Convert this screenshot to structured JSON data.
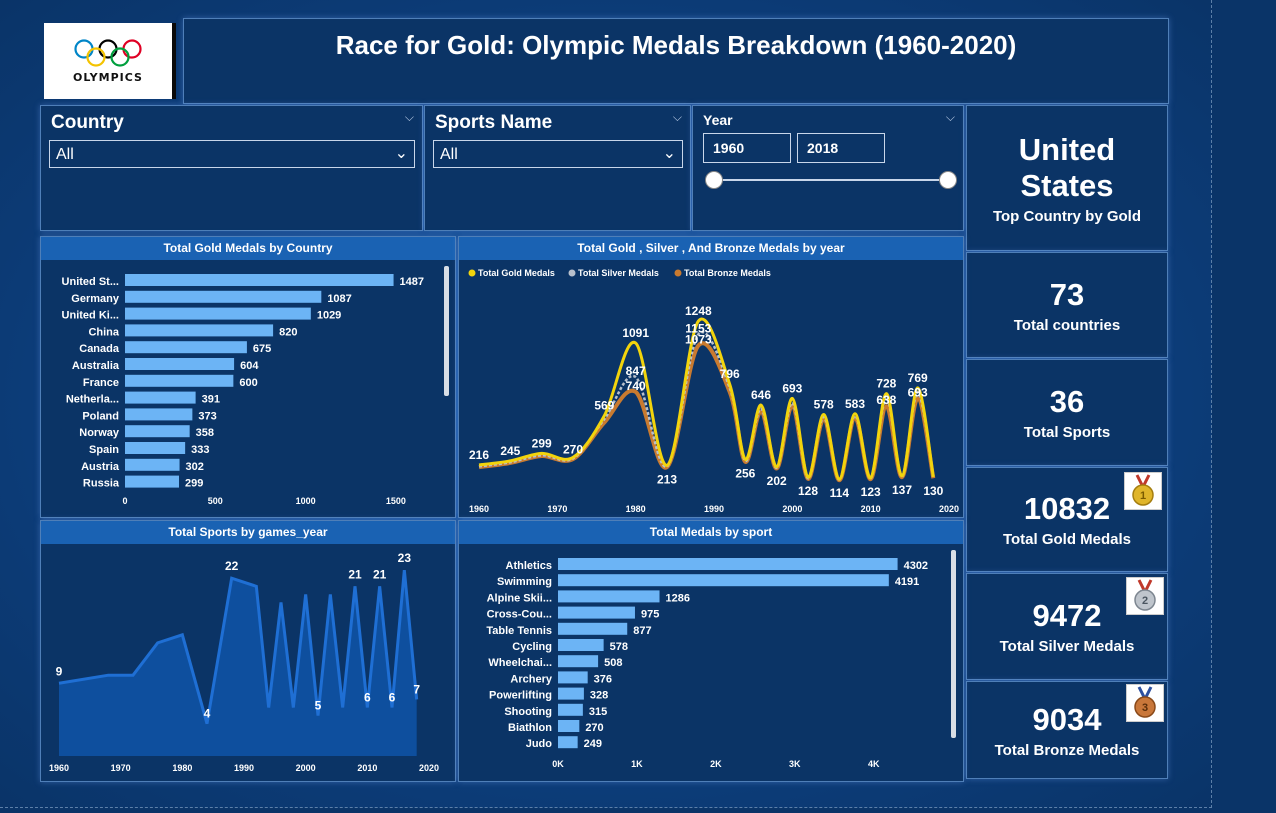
{
  "header": {
    "title": "Race for Gold: Olympic Medals Breakdown (1960-2020)",
    "logo_text": "OLYMPICS"
  },
  "filters": {
    "country": {
      "label": "Country",
      "value": "All"
    },
    "sports": {
      "label": "Sports Name",
      "value": "All"
    },
    "year": {
      "label": "Year",
      "start": "1960",
      "end": "2018"
    }
  },
  "kpis": {
    "top_country": {
      "value": "United States",
      "line1": "United",
      "line2": "States",
      "label": "Top Country by Gold"
    },
    "countries": {
      "value": "73",
      "label": "Total countries"
    },
    "sports": {
      "value": "36",
      "label": "Total Sports"
    },
    "gold": {
      "value": "10832",
      "label": "Total Gold Medals",
      "icon": "gold-medal-icon"
    },
    "silver": {
      "value": "9472",
      "label": "Total Silver Medals",
      "icon": "silver-medal-icon"
    },
    "bronze": {
      "value": "9034",
      "label": "Total Bronze Medals",
      "icon": "bronze-medal-icon"
    }
  },
  "colors": {
    "bar": "#6cb4f5",
    "gold": "#f2d40c",
    "silver": "#b8c0cc",
    "bronze": "#c97a2f",
    "area": "#1f6fd4"
  },
  "chart_data": [
    {
      "id": "gold_by_country",
      "type": "bar",
      "title": "Total Gold Medals by Country",
      "categories": [
        "United St...",
        "Germany",
        "United Ki...",
        "China",
        "Canada",
        "Australia",
        "France",
        "Netherla...",
        "Poland",
        "Norway",
        "Spain",
        "Austria",
        "Russia"
      ],
      "values": [
        1487,
        1087,
        1029,
        820,
        675,
        604,
        600,
        391,
        373,
        358,
        333,
        302,
        299
      ],
      "xticks": [
        "0",
        "500",
        "1000",
        "1500"
      ],
      "xlim": [
        0,
        1650
      ]
    },
    {
      "id": "medals_by_year",
      "type": "line",
      "title": "Total Gold , Silver , And Bronze Medals by year",
      "legend": [
        "Total Gold Medals",
        "Total Silver Medals",
        "Total Bronze Medals"
      ],
      "xticks": [
        "1960",
        "1970",
        "1980",
        "1990",
        "2000",
        "2010",
        "2020"
      ],
      "x": [
        1960,
        1964,
        1968,
        1972,
        1976,
        1980,
        1984,
        1988,
        1992,
        1994,
        1996,
        1998,
        2000,
        2002,
        2004,
        2006,
        2008,
        2010,
        2012,
        2014,
        2016,
        2018
      ],
      "series": [
        {
          "name": "Total Gold Medals",
          "values": [
            216,
            245,
            299,
            270,
            569,
            1091,
            213,
            1248,
            796,
            256,
            646,
            202,
            693,
            128,
            578,
            114,
            583,
            123,
            728,
            137,
            769,
            130
          ]
        },
        {
          "name": "Total Silver Medals",
          "values": [
            205,
            235,
            285,
            262,
            545,
            847,
            205,
            1153,
            770,
            245,
            620,
            195,
            660,
            120,
            560,
            110,
            570,
            118,
            700,
            132,
            740,
            124
          ]
        },
        {
          "name": "Total Bronze Medals",
          "values": [
            200,
            230,
            280,
            258,
            520,
            740,
            200,
            1073,
            740,
            238,
            600,
            190,
            640,
            116,
            545,
            106,
            555,
            114,
            638,
            128,
            693,
            120
          ]
        }
      ],
      "labels": [
        {
          "x": 1960,
          "text": "216"
        },
        {
          "x": 1964,
          "text": "245"
        },
        {
          "x": 1968,
          "text": "299"
        },
        {
          "x": 1972,
          "text": "270"
        },
        {
          "x": 1976,
          "text": "569"
        },
        {
          "x": 1980,
          "text": "1091"
        },
        {
          "x": 1980,
          "text": "847"
        },
        {
          "x": 1980,
          "text": "740"
        },
        {
          "x": 1984,
          "text": "213"
        },
        {
          "x": 1988,
          "text": "1248"
        },
        {
          "x": 1988,
          "text": "1153"
        },
        {
          "x": 1988,
          "text": "1073"
        },
        {
          "x": 1992,
          "text": "796"
        },
        {
          "x": 1994,
          "text": "256"
        },
        {
          "x": 1996,
          "text": "646"
        },
        {
          "x": 1998,
          "text": "202"
        },
        {
          "x": 2000,
          "text": "693"
        },
        {
          "x": 2002,
          "text": "128"
        },
        {
          "x": 2004,
          "text": "578"
        },
        {
          "x": 2006,
          "text": "114"
        },
        {
          "x": 2008,
          "text": "583"
        },
        {
          "x": 2010,
          "text": "123"
        },
        {
          "x": 2012,
          "text": "728"
        },
        {
          "x": 2012,
          "text": "638"
        },
        {
          "x": 2014,
          "text": "137"
        },
        {
          "x": 2016,
          "text": "769"
        },
        {
          "x": 2016,
          "text": "693"
        },
        {
          "x": 2018,
          "text": "130"
        }
      ],
      "ylim": [
        0,
        1400
      ]
    },
    {
      "id": "sports_by_year",
      "type": "area",
      "title": "Total Sports by games_year",
      "xticks": [
        "1960",
        "1970",
        "1980",
        "1990",
        "2000",
        "2010",
        "2020"
      ],
      "x": [
        1960,
        1968,
        1972,
        1976,
        1980,
        1984,
        1988,
        1992,
        1994,
        1996,
        1998,
        2000,
        2002,
        2004,
        2006,
        2008,
        2010,
        2012,
        2014,
        2016,
        2018
      ],
      "values": [
        9,
        10,
        10,
        14,
        15,
        4,
        22,
        21,
        6,
        19,
        6,
        20,
        5,
        20,
        6,
        21,
        6,
        21,
        6,
        23,
        7
      ],
      "labeled": [
        {
          "x": 1960,
          "text": "9"
        },
        {
          "x": 1984,
          "text": "4"
        },
        {
          "x": 1988,
          "text": "22"
        },
        {
          "x": 2002,
          "text": "5"
        },
        {
          "x": 2008,
          "text": "21"
        },
        {
          "x": 2010,
          "text": "6"
        },
        {
          "x": 2012,
          "text": "21"
        },
        {
          "x": 2014,
          "text": "6"
        },
        {
          "x": 2016,
          "text": "23"
        },
        {
          "x": 2018,
          "text": "7"
        }
      ],
      "ylim": [
        0,
        25
      ]
    },
    {
      "id": "medals_by_sport",
      "type": "bar",
      "title": "Total Medals by sport",
      "categories": [
        "Athletics",
        "Swimming",
        "Alpine Skii...",
        "Cross-Cou...",
        "Table Tennis",
        "Cycling",
        "Wheelchai...",
        "Archery",
        "Powerlifting",
        "Shooting",
        "Biathlon",
        "Judo"
      ],
      "values": [
        4302,
        4191,
        1286,
        975,
        877,
        578,
        508,
        376,
        328,
        315,
        270,
        249
      ],
      "xticks": [
        "0K",
        "1K",
        "2K",
        "3K",
        "4K"
      ],
      "xlim": [
        0,
        4700
      ]
    }
  ]
}
